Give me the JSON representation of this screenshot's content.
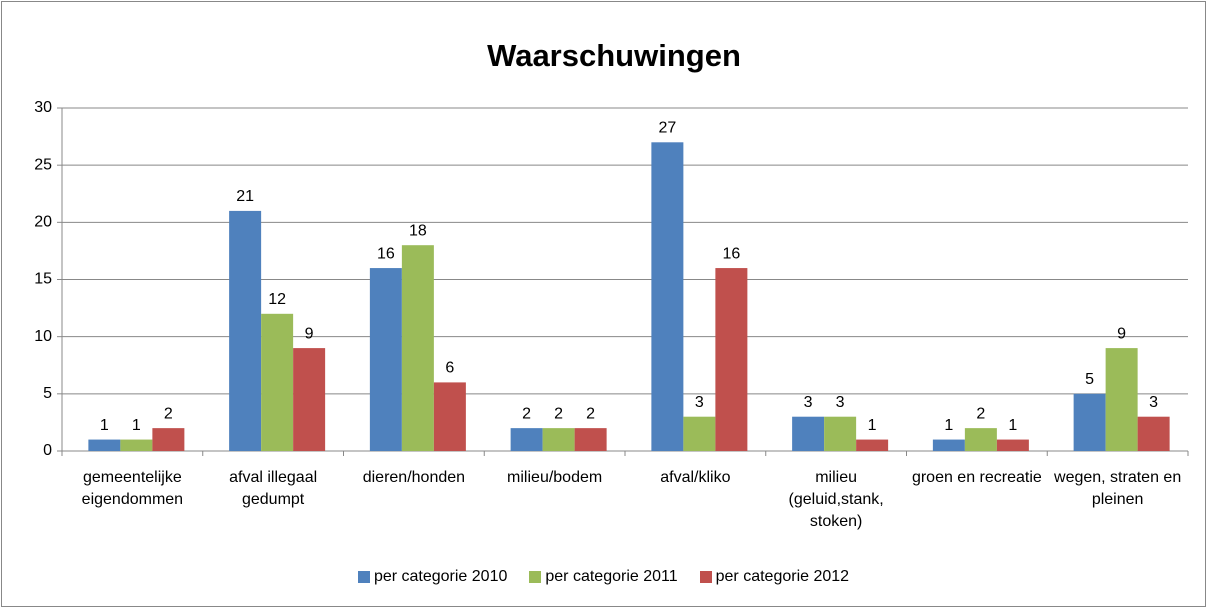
{
  "chart_data": {
    "type": "bar",
    "title": "Waarschuwingen",
    "categories": [
      "gemeentelijke eigendommen",
      "afval illegaal gedumpt",
      "dieren/honden",
      "milieu/bodem",
      "afval/kliko",
      "milieu (geluid,stank, stoken)",
      "groen en recreatie",
      "wegen, straten en pleinen"
    ],
    "series": [
      {
        "name": "per categorie 2010",
        "color": "#4f81bd",
        "values": [
          1,
          21,
          16,
          2,
          27,
          3,
          1,
          5
        ]
      },
      {
        "name": "per categorie 2011",
        "color": "#9bbb59",
        "values": [
          1,
          12,
          18,
          2,
          3,
          3,
          2,
          9
        ]
      },
      {
        "name": "per categorie 2012",
        "color": "#c0504d",
        "values": [
          2,
          9,
          6,
          2,
          16,
          1,
          1,
          3
        ]
      }
    ],
    "ylim": [
      0,
      30
    ],
    "yticks": [
      0,
      5,
      10,
      15,
      20,
      25,
      30
    ],
    "grid": true,
    "legend": "bottom"
  }
}
